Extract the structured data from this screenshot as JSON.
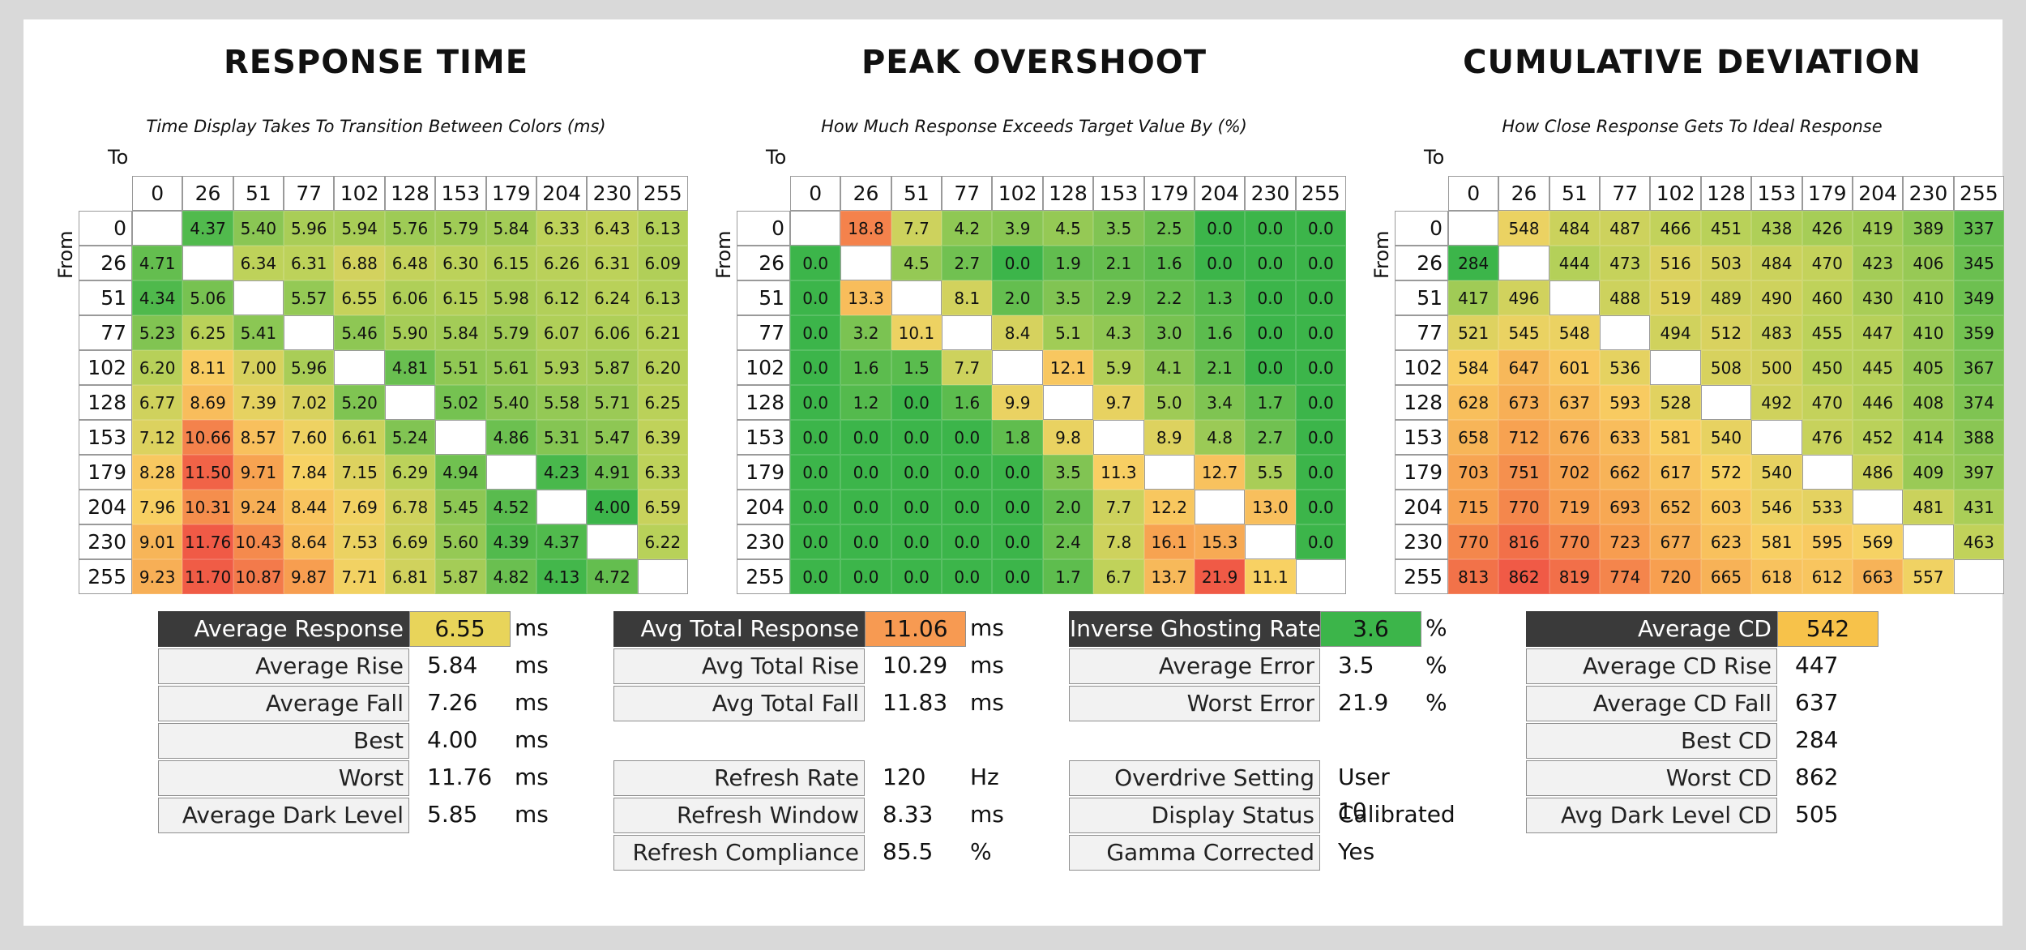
{
  "chart_data": [
    {
      "type": "heatmap",
      "title": "RESPONSE TIME",
      "subtitle": "Time Display Takes To Transition Between Colors (ms)",
      "xlabel": "To",
      "ylabel": "From",
      "x": [
        0,
        26,
        51,
        77,
        102,
        128,
        153,
        179,
        204,
        230,
        255
      ],
      "y": [
        0,
        26,
        51,
        77,
        102,
        128,
        153,
        179,
        204,
        230,
        255
      ],
      "decimals": 2,
      "color_min": 4.0,
      "color_max": 11.76,
      "values": [
        [
          null,
          4.37,
          5.4,
          5.96,
          5.94,
          5.76,
          5.79,
          5.84,
          6.33,
          6.43,
          6.13
        ],
        [
          4.71,
          null,
          6.34,
          6.31,
          6.88,
          6.48,
          6.3,
          6.15,
          6.26,
          6.31,
          6.09
        ],
        [
          4.34,
          5.06,
          null,
          5.57,
          6.55,
          6.06,
          6.15,
          5.98,
          6.12,
          6.24,
          6.13
        ],
        [
          5.23,
          6.25,
          5.41,
          null,
          5.46,
          5.9,
          5.84,
          5.79,
          6.07,
          6.06,
          6.21
        ],
        [
          6.2,
          8.11,
          7.0,
          5.96,
          null,
          4.81,
          5.51,
          5.61,
          5.93,
          5.87,
          6.2
        ],
        [
          6.77,
          8.69,
          7.39,
          7.02,
          5.2,
          null,
          5.02,
          5.4,
          5.58,
          5.71,
          6.25
        ],
        [
          7.12,
          10.66,
          8.57,
          7.6,
          6.61,
          5.24,
          null,
          4.86,
          5.31,
          5.47,
          6.39
        ],
        [
          8.28,
          11.5,
          9.71,
          7.84,
          7.15,
          6.29,
          4.94,
          null,
          4.23,
          4.91,
          6.33
        ],
        [
          7.96,
          10.31,
          9.24,
          8.44,
          7.69,
          6.78,
          5.45,
          4.52,
          null,
          4.0,
          6.59
        ],
        [
          9.01,
          11.76,
          10.43,
          8.64,
          7.53,
          6.69,
          5.6,
          4.39,
          4.37,
          null,
          6.22
        ],
        [
          9.23,
          11.7,
          10.87,
          9.87,
          7.71,
          6.81,
          5.87,
          4.82,
          4.13,
          4.72,
          null
        ]
      ]
    },
    {
      "type": "heatmap",
      "title": "PEAK OVERSHOOT",
      "subtitle": "How Much Response Exceeds Target Value By (%)",
      "xlabel": "To",
      "ylabel": "From",
      "x": [
        0,
        26,
        51,
        77,
        102,
        128,
        153,
        179,
        204,
        230,
        255
      ],
      "y": [
        0,
        26,
        51,
        77,
        102,
        128,
        153,
        179,
        204,
        230,
        255
      ],
      "decimals": 1,
      "color_min": 0,
      "color_max": 21.9,
      "values": [
        [
          null,
          18.8,
          7.7,
          4.2,
          3.9,
          4.5,
          3.5,
          2.5,
          0.0,
          0.0,
          0.0
        ],
        [
          0.0,
          null,
          4.5,
          2.7,
          0.0,
          1.9,
          2.1,
          1.6,
          0.0,
          0.0,
          0.0
        ],
        [
          0.0,
          13.3,
          null,
          8.1,
          2.0,
          3.5,
          2.9,
          2.2,
          1.3,
          0.0,
          0.0
        ],
        [
          0.0,
          3.2,
          10.1,
          null,
          8.4,
          5.1,
          4.3,
          3.0,
          1.6,
          0.0,
          0.0
        ],
        [
          0.0,
          1.6,
          1.5,
          7.7,
          null,
          12.1,
          5.9,
          4.1,
          2.1,
          0.0,
          0.0
        ],
        [
          0.0,
          1.2,
          0.0,
          1.6,
          9.9,
          null,
          9.7,
          5.0,
          3.4,
          1.7,
          0.0
        ],
        [
          0.0,
          0.0,
          0.0,
          0.0,
          1.8,
          9.8,
          null,
          8.9,
          4.8,
          2.7,
          0.0
        ],
        [
          0.0,
          0.0,
          0.0,
          0.0,
          0.0,
          3.5,
          11.3,
          null,
          12.7,
          5.5,
          0.0
        ],
        [
          0.0,
          0.0,
          0.0,
          0.0,
          0.0,
          2.0,
          7.7,
          12.2,
          null,
          13.0,
          0.0
        ],
        [
          0.0,
          0.0,
          0.0,
          0.0,
          0.0,
          2.4,
          7.8,
          16.1,
          15.3,
          null,
          0.0
        ],
        [
          0.0,
          0.0,
          0.0,
          0.0,
          0.0,
          1.7,
          6.7,
          13.7,
          21.9,
          11.1,
          null
        ]
      ]
    },
    {
      "type": "heatmap",
      "title": "CUMULATIVE DEVIATION",
      "subtitle": "How Close Response Gets To Ideal Response",
      "xlabel": "To",
      "ylabel": "From",
      "x": [
        0,
        26,
        51,
        77,
        102,
        128,
        153,
        179,
        204,
        230,
        255
      ],
      "y": [
        0,
        26,
        51,
        77,
        102,
        128,
        153,
        179,
        204,
        230,
        255
      ],
      "decimals": 0,
      "color_min": 284,
      "color_max": 862,
      "values": [
        [
          null,
          548,
          484,
          487,
          466,
          451,
          438,
          426,
          419,
          389,
          337
        ],
        [
          284,
          null,
          444,
          473,
          516,
          503,
          484,
          470,
          423,
          406,
          345
        ],
        [
          417,
          496,
          null,
          488,
          519,
          489,
          490,
          460,
          430,
          410,
          349
        ],
        [
          521,
          545,
          548,
          null,
          494,
          512,
          483,
          455,
          447,
          410,
          359
        ],
        [
          584,
          647,
          601,
          536,
          null,
          508,
          500,
          450,
          445,
          405,
          367
        ],
        [
          628,
          673,
          637,
          593,
          528,
          null,
          492,
          470,
          446,
          408,
          374
        ],
        [
          658,
          712,
          676,
          633,
          581,
          540,
          null,
          476,
          452,
          414,
          388
        ],
        [
          703,
          751,
          702,
          662,
          617,
          572,
          540,
          null,
          486,
          409,
          397
        ],
        [
          715,
          770,
          719,
          693,
          652,
          603,
          546,
          533,
          null,
          481,
          431
        ],
        [
          770,
          816,
          770,
          723,
          677,
          623,
          581,
          595,
          569,
          null,
          463
        ],
        [
          813,
          862,
          819,
          774,
          720,
          665,
          618,
          612,
          663,
          557,
          null
        ]
      ]
    }
  ],
  "stats": [
    {
      "rows": [
        {
          "label": "Average Response",
          "value": "6.55",
          "unit": "ms",
          "highlight": "#e8d45a"
        },
        {
          "label": "Average Rise",
          "value": "5.84",
          "unit": "ms"
        },
        {
          "label": "Average Fall",
          "value": "7.26",
          "unit": "ms"
        },
        {
          "label": "Best",
          "value": "4.00",
          "unit": "ms"
        },
        {
          "label": "Worst",
          "value": "11.76",
          "unit": "ms"
        },
        {
          "label": "Average Dark Level",
          "value": "5.85",
          "unit": "ms"
        }
      ]
    },
    {
      "rows": [
        {
          "label": "Avg Total Response",
          "value": "11.06",
          "unit": "ms",
          "highlight": "#f79a52"
        },
        {
          "label": "Avg Total Rise",
          "value": "10.29",
          "unit": "ms"
        },
        {
          "label": "Avg Total Fall",
          "value": "11.83",
          "unit": "ms"
        },
        null,
        {
          "label": "Refresh Rate",
          "value": "120",
          "unit": "Hz"
        },
        {
          "label": "Refresh Window",
          "value": "8.33",
          "unit": "ms"
        },
        {
          "label": "Refresh Compliance",
          "value": "85.5",
          "unit": "%"
        }
      ]
    },
    {
      "rows": [
        {
          "label": "Inverse Ghosting Rate",
          "value": "3.6",
          "unit": "%",
          "highlight": "#3cb54a"
        },
        {
          "label": "Average Error",
          "value": "3.5",
          "unit": "%"
        },
        {
          "label": "Worst Error",
          "value": "21.9",
          "unit": "%"
        },
        null,
        {
          "label": "Overdrive Setting",
          "value": "User 10",
          "unit": ""
        },
        {
          "label": "Display Status",
          "value": "Calibrated",
          "unit": ""
        },
        {
          "label": "Gamma Corrected",
          "value": "Yes",
          "unit": ""
        }
      ]
    },
    {
      "rows": [
        {
          "label": "Average CD",
          "value": "542",
          "unit": "",
          "highlight": "#f7c24a"
        },
        {
          "label": "Average CD Rise",
          "value": "447",
          "unit": ""
        },
        {
          "label": "Average CD Fall",
          "value": "637",
          "unit": ""
        },
        {
          "label": "Best CD",
          "value": "284",
          "unit": ""
        },
        {
          "label": "Worst CD",
          "value": "862",
          "unit": ""
        },
        {
          "label": "Avg Dark Level CD",
          "value": "505",
          "unit": ""
        }
      ]
    }
  ]
}
